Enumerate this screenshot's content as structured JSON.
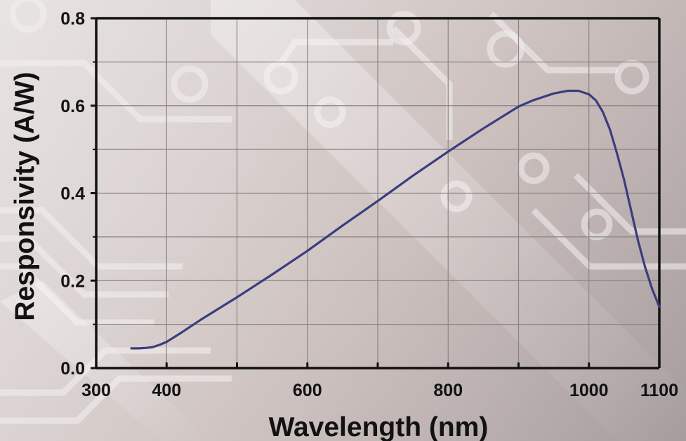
{
  "chart_data": {
    "type": "line",
    "title": "",
    "xlabel": "Wavelength (nm)",
    "ylabel": "Responsivity (A/W)",
    "xlim": [
      300,
      1100
    ],
    "ylim": [
      0.0,
      0.8
    ],
    "x_major_ticks": [
      300,
      400,
      600,
      800,
      1000,
      1100
    ],
    "x_tick_labels": [
      "300",
      "400",
      "600",
      "800",
      "1000",
      "1100"
    ],
    "x_grid": [
      300,
      400,
      500,
      600,
      700,
      800,
      900,
      1000,
      1100
    ],
    "y_major_ticks": [
      0.0,
      0.2,
      0.4,
      0.6,
      0.8
    ],
    "y_tick_labels": [
      "0.0",
      "0.2",
      "0.4",
      "0.6",
      "0.8"
    ],
    "y_grid": [
      0.0,
      0.1,
      0.2,
      0.3,
      0.4,
      0.5,
      0.6,
      0.7,
      0.8
    ],
    "grid": true,
    "legend": "none",
    "line_color": "#3a3d7e",
    "series": [
      {
        "x": [
          350,
          360,
          370,
          380,
          390,
          400,
          420,
          450,
          500,
          550,
          600,
          650,
          700,
          750,
          800,
          850,
          900,
          920,
          950,
          970,
          985,
          1000,
          1010,
          1020,
          1030,
          1040,
          1050,
          1060,
          1070,
          1080,
          1090,
          1100
        ],
        "y": [
          0.045,
          0.045,
          0.046,
          0.048,
          0.053,
          0.06,
          0.08,
          0.112,
          0.162,
          0.214,
          0.268,
          0.326,
          0.382,
          0.44,
          0.495,
          0.548,
          0.598,
          0.612,
          0.628,
          0.634,
          0.634,
          0.626,
          0.612,
          0.585,
          0.545,
          0.49,
          0.43,
          0.36,
          0.29,
          0.23,
          0.18,
          0.14
        ]
      }
    ]
  }
}
